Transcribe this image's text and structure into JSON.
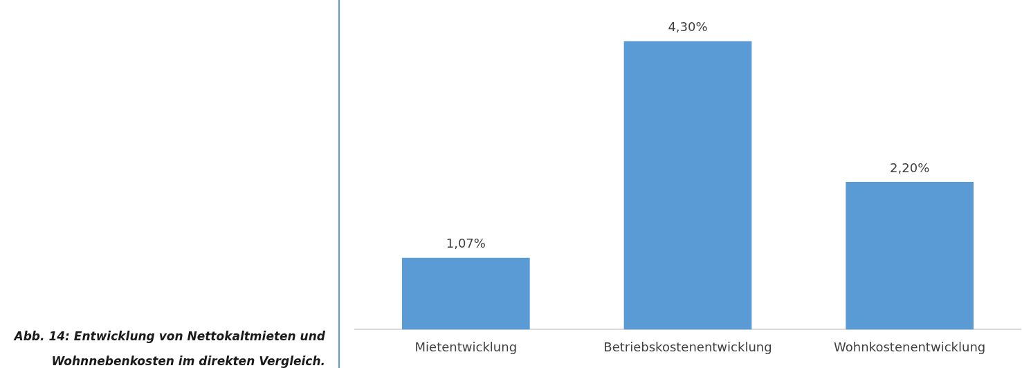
{
  "chart_data": {
    "type": "bar",
    "title": "Abb. 14: Entwicklung von Nettokaltmieten und Wohnnebenkosten im direkten Vergleich.",
    "categories": [
      "Mietentwicklung",
      "Betriebskostenentwicklung",
      "Wohnkostenentwicklung"
    ],
    "values": [
      1.07,
      4.3,
      2.2
    ],
    "value_labels": [
      "1,07%",
      "4,30%",
      "2,20%"
    ],
    "color": "#5b9bd5",
    "grid": false,
    "legend": false
  }
}
